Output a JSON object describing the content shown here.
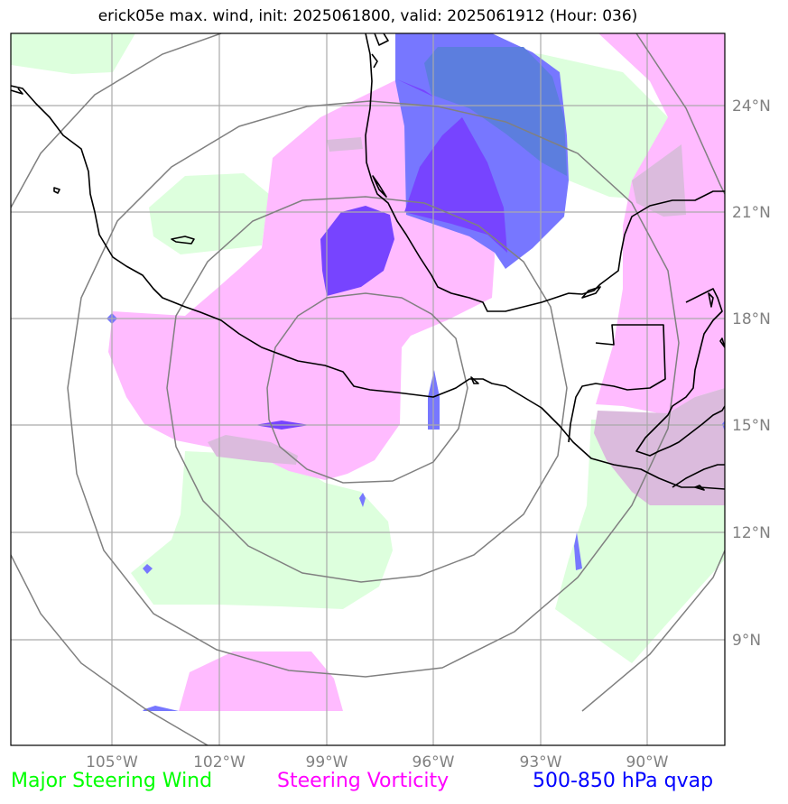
{
  "title": "erick05e max. wind, init: 2025061800, valid: 2025061912 (Hour: 036)",
  "map": {
    "lon_ticks": [
      "105°W",
      "102°W",
      "99°W",
      "96°W",
      "93°W",
      "90°W"
    ],
    "lat_ticks": [
      "24°N",
      "21°N",
      "18°N",
      "15°N",
      "12°N",
      "9°N"
    ],
    "colors": {
      "steering_wind": "#ddffdd",
      "steering_vorticity": "#ffbbff",
      "qvap_light": "#7777ff",
      "qvap_mid": "#5c7ede",
      "qvap_dark": "#7744ff",
      "coastline": "#000000",
      "range_rings": "#808080",
      "gridlines": "#aaaaaa"
    }
  },
  "legend": {
    "steering_wind": {
      "label": "Major Steering Wind",
      "color": "#00ff00"
    },
    "steering_vorticity": {
      "label": "Steering Vorticity",
      "color": "#ff00ff"
    },
    "qvap": {
      "label": "500-850 hPa qvap",
      "color": "#0000ff"
    }
  }
}
